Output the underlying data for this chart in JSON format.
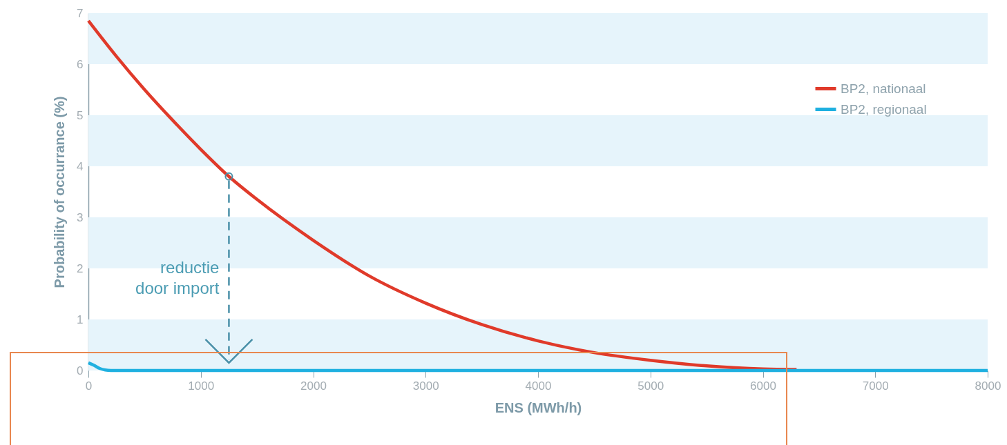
{
  "chart_data": {
    "type": "line",
    "xlabel": "ENS (MWh/h)",
    "ylabel": "Probability of occurrance (%)",
    "xlim": [
      0,
      8000
    ],
    "ylim": [
      0,
      7
    ],
    "xticks": [
      0,
      1000,
      2000,
      3000,
      4000,
      5000,
      6000,
      7000,
      8000
    ],
    "yticks": [
      0,
      1,
      2,
      3,
      4,
      5,
      6,
      7
    ],
    "grid": false,
    "legend": "top right",
    "line_style": "solid",
    "marker": "none",
    "bands": [
      {
        "axis": "y",
        "from": 0,
        "to": 1,
        "color": "#e6f4fb"
      },
      {
        "axis": "y",
        "from": 2,
        "to": 3,
        "color": "#e6f4fb"
      },
      {
        "axis": "y",
        "from": 4,
        "to": 5,
        "color": "#e6f4fb"
      },
      {
        "axis": "y",
        "from": 6,
        "to": 7,
        "color": "#e6f4fb"
      }
    ],
    "annotations": [
      {
        "text": "reductie\ndoor import",
        "x": 1250,
        "y": 2
      }
    ],
    "series": [
      {
        "name": "BP2, nationaal",
        "color": "#e03a2a",
        "x": [
          0,
          250,
          500,
          750,
          1000,
          1250,
          1500,
          2000,
          2500,
          3000,
          3500,
          4000,
          4500,
          5000,
          5500,
          6000,
          6300
        ],
        "values": [
          6.85,
          6.15,
          5.5,
          4.9,
          4.33,
          3.8,
          3.35,
          2.55,
          1.85,
          1.32,
          0.9,
          0.58,
          0.35,
          0.2,
          0.09,
          0.03,
          0.02
        ]
      },
      {
        "name": "BP2, regionaal",
        "color": "#1fb0e0",
        "x": [
          0,
          50,
          100,
          150,
          200,
          8000
        ],
        "values": [
          0.15,
          0.1,
          0.04,
          0.01,
          0,
          0
        ]
      }
    ]
  }
}
